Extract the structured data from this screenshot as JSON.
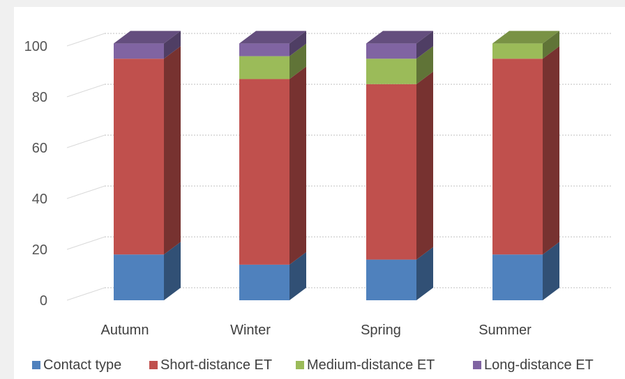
{
  "chart_data": {
    "type": "bar",
    "stacked": true,
    "three_d": true,
    "categories": [
      "Autumn",
      "Winter",
      "Spring",
      "Summer"
    ],
    "series": [
      {
        "name": "Contact type",
        "values": [
          18,
          14,
          16,
          18
        ],
        "color": "#4f81bd"
      },
      {
        "name": "Short-distance ET",
        "values": [
          77,
          73,
          69,
          77
        ],
        "color": "#c0504d"
      },
      {
        "name": "Medium-distance ET",
        "values": [
          0,
          9,
          10,
          6
        ],
        "color": "#9bbb59"
      },
      {
        "name": "Long-distance ET",
        "values": [
          6,
          5,
          6,
          0
        ],
        "color": "#8064a2"
      }
    ],
    "y_ticks": [
      "0",
      "20",
      "40",
      "60",
      "80",
      "100"
    ],
    "ylim": [
      0,
      100
    ],
    "grid": true,
    "legend_position": "bottom",
    "title": "",
    "xlabel": "",
    "ylabel": ""
  }
}
